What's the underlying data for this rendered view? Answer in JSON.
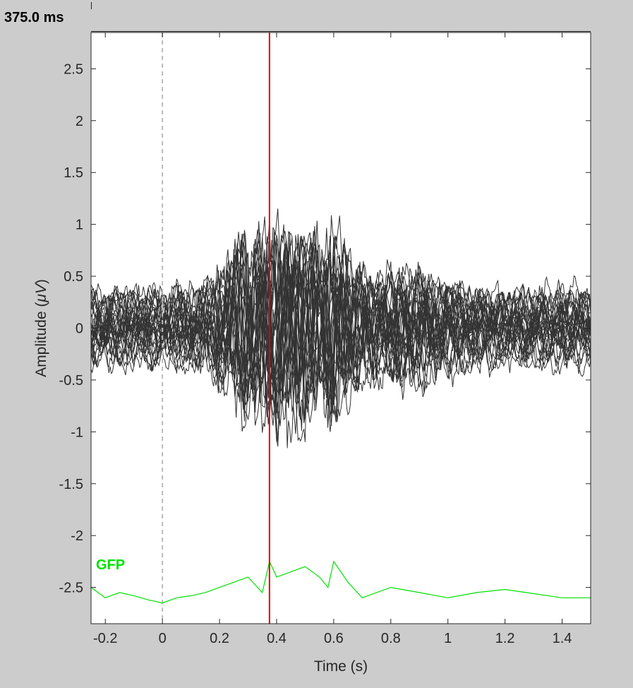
{
  "time_readout": "375.0 ms",
  "chart_data": {
    "type": "line",
    "xlabel": "Time (s)",
    "ylabel_main": "Amplitude (",
    "ylabel_unit": "μV",
    "ylabel_close": ")",
    "xlim": [
      -0.25,
      1.5
    ],
    "ylim": [
      -2.85,
      2.85
    ],
    "x_ticks": [
      -0.2,
      0,
      0.2,
      0.4,
      0.6,
      0.8,
      1,
      1.2,
      1.4
    ],
    "x_tick_labels": [
      "-0.2",
      "0",
      "0.2",
      "0.4",
      "0.6",
      "0.8",
      "1",
      "1.2",
      "1.4"
    ],
    "y_ticks": [
      2.5,
      2,
      1.5,
      1,
      0.5,
      0,
      -0.5,
      -1,
      -1.5,
      -2,
      -2.5
    ],
    "y_tick_labels": [
      "2.5",
      "2",
      "1.5",
      "1",
      "0.5",
      "0",
      "-0.5",
      "-1",
      "-1.5",
      "-2",
      "-2.5"
    ],
    "grid": false,
    "event_marker_x": 0,
    "cursor_x": 0.375,
    "gfp_label": "GFP",
    "colors": {
      "channels": "#333333",
      "gfp": "#00e000",
      "cursor": "#e00000",
      "event_marker": "#bbbbbb",
      "axes_background": "#ffffff",
      "figure_background": "#cccccc"
    },
    "series": [
      {
        "name": "GFP",
        "x": [
          -0.25,
          -0.2,
          -0.15,
          -0.1,
          -0.05,
          0,
          0.05,
          0.1,
          0.15,
          0.2,
          0.25,
          0.3,
          0.35,
          0.375,
          0.4,
          0.45,
          0.5,
          0.55,
          0.58,
          0.6,
          0.65,
          0.7,
          0.8,
          0.9,
          1.0,
          1.1,
          1.2,
          1.3,
          1.4,
          1.5
        ],
        "y": [
          -2.5,
          -2.6,
          -2.55,
          -2.58,
          -2.62,
          -2.65,
          -2.6,
          -2.58,
          -2.55,
          -2.5,
          -2.45,
          -2.4,
          -2.55,
          -2.25,
          -2.4,
          -2.35,
          -2.3,
          -2.4,
          -2.5,
          -2.25,
          -2.45,
          -2.6,
          -2.5,
          -2.55,
          -2.6,
          -2.55,
          -2.52,
          -2.56,
          -2.6,
          -2.6
        ]
      }
    ]
  }
}
